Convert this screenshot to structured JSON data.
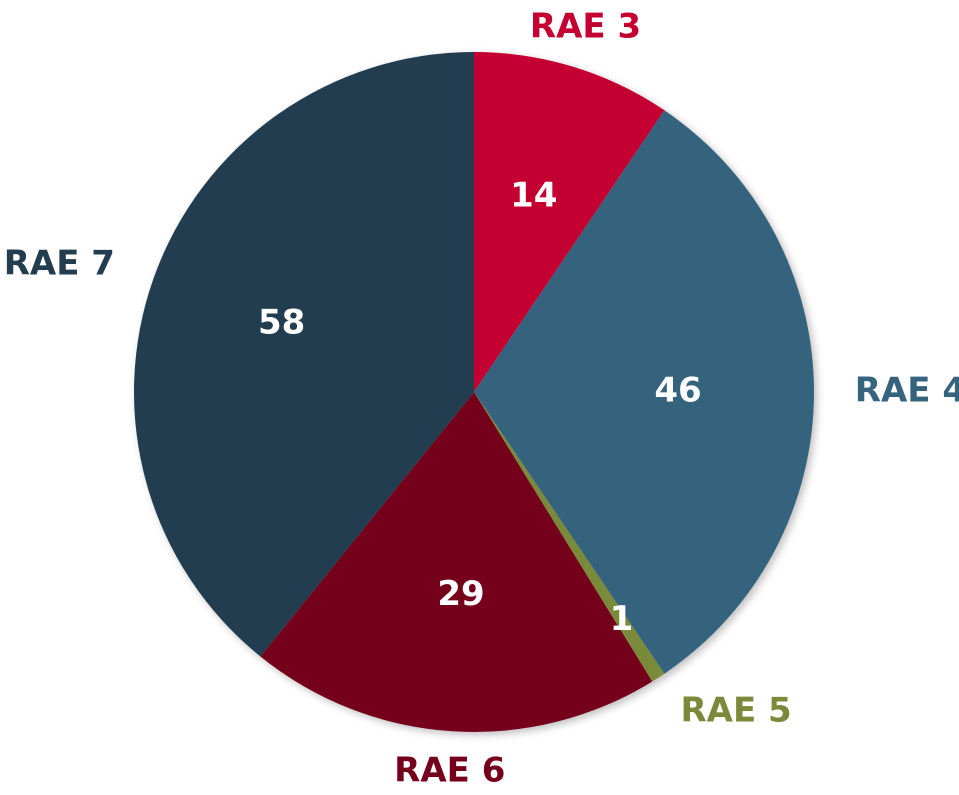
{
  "chart_data": {
    "type": "pie",
    "categories": [
      "RAE 3",
      "RAE 4",
      "RAE 5",
      "RAE 6",
      "RAE 7"
    ],
    "values": [
      14,
      46,
      1,
      29,
      58
    ],
    "colors": [
      "#c40030",
      "#36647e",
      "#7a8a3a",
      "#75001c",
      "#233d4f"
    ]
  }
}
